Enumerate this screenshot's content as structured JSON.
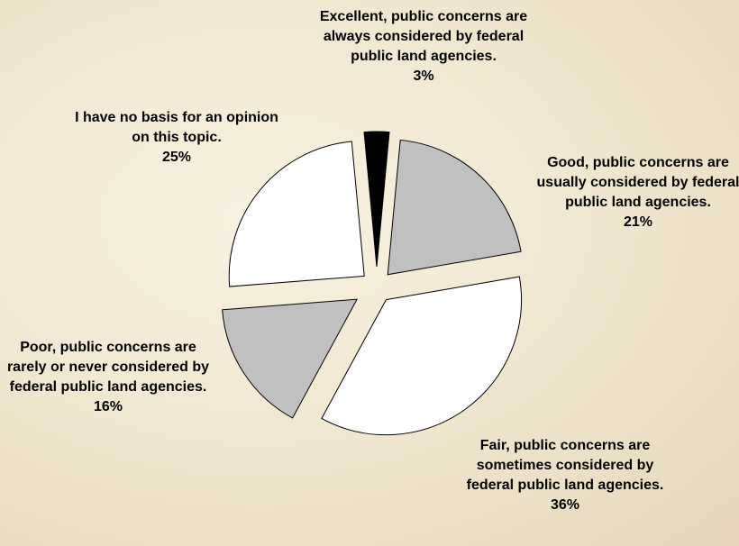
{
  "chart_data": {
    "type": "pie",
    "exploded": true,
    "slices": [
      {
        "label": "Excellent, public concerns are always considered by federal public land agencies.",
        "pct_label": "3%",
        "value": 3,
        "color": "#000000"
      },
      {
        "label": "Good, public concerns are usually considered by federal public land agencies.",
        "pct_label": "21%",
        "value": 21,
        "color": "#c0c0c0"
      },
      {
        "label": "Fair, public concerns are sometimes considered by federal public land agencies.",
        "pct_label": "36%",
        "value": 36,
        "color": "#ffffff"
      },
      {
        "label": "Poor, public concerns are rarely or never considered by federal public land agencies.",
        "pct_label": "16%",
        "value": 16,
        "color": "#c0c0c0"
      },
      {
        "label": "I have no basis for an opinion on this topic.",
        "pct_label": "25%",
        "value": 25,
        "color": "#ffffff"
      }
    ],
    "title": ""
  }
}
